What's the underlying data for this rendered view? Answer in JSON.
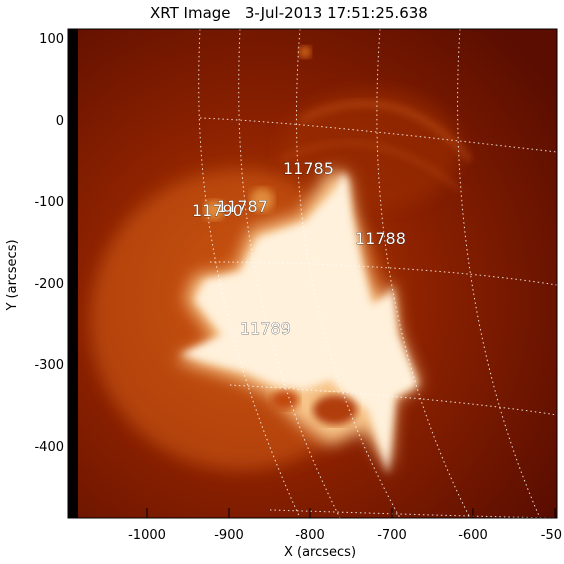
{
  "title": "XRT Image   3-Jul-2013 17:51:25.638",
  "x_axis": {
    "label": "X (arcsecs)",
    "ticks": [
      "-1000",
      "-900",
      "-800",
      "-700",
      "-600",
      "-50"
    ]
  },
  "y_axis": {
    "label": "Y (arcsecs)",
    "ticks": [
      "100",
      "0",
      "-100",
      "-200",
      "-300",
      "-400"
    ]
  },
  "active_regions": {
    "ar_11785": "11785",
    "ar_11790": "11790",
    "ar_11787": "11787",
    "ar_11788": "11788",
    "ar_11789": "11789"
  },
  "colors": {
    "background": "#ffffff",
    "image_dark": "#5a0d00",
    "image_mid": "#b03a00",
    "image_bright": "#fff4df",
    "grid": "#ffffff"
  }
}
